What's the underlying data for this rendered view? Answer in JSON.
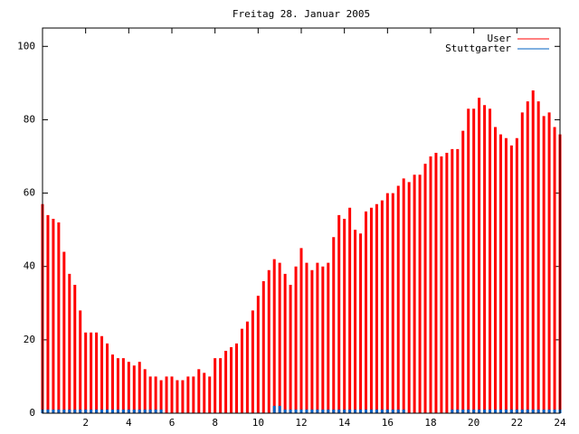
{
  "chart_data": {
    "type": "impulse",
    "title": "Freitag 28. Januar 2005",
    "x": [
      0,
      0.25,
      0.5,
      0.75,
      1,
      1.25,
      1.5,
      1.75,
      2,
      2.25,
      2.5,
      2.75,
      3,
      3.25,
      3.5,
      3.75,
      4,
      4.25,
      4.5,
      4.75,
      5,
      5.25,
      5.5,
      5.75,
      6,
      6.25,
      6.5,
      6.75,
      7,
      7.25,
      7.5,
      7.75,
      8,
      8.25,
      8.5,
      8.75,
      9,
      9.25,
      9.5,
      9.75,
      10,
      10.25,
      10.5,
      10.75,
      11,
      11.25,
      11.5,
      11.75,
      12,
      12.25,
      12.5,
      12.75,
      13,
      13.25,
      13.5,
      13.75,
      14,
      14.25,
      14.5,
      14.75,
      15,
      15.25,
      15.5,
      15.75,
      16,
      16.25,
      16.5,
      16.75,
      17,
      17.25,
      17.5,
      17.75,
      18,
      18.25,
      18.5,
      18.75,
      19,
      19.25,
      19.5,
      19.75,
      20,
      20.25,
      20.5,
      20.75,
      21,
      21.25,
      21.5,
      21.75,
      22,
      22.25,
      22.5,
      22.75,
      23,
      23.25,
      23.5,
      23.75,
      24
    ],
    "series": [
      {
        "name": "User",
        "color": "#ff0000",
        "values": [
          57,
          54,
          53,
          52,
          44,
          38,
          35,
          28,
          22,
          22,
          22,
          21,
          19,
          16,
          15,
          15,
          14,
          13,
          14,
          12,
          10,
          10,
          9,
          10,
          10,
          9,
          9,
          10,
          10,
          12,
          11,
          10,
          15,
          15,
          17,
          18,
          19,
          23,
          25,
          28,
          32,
          36,
          39,
          42,
          41,
          38,
          35,
          40,
          45,
          41,
          39,
          41,
          40,
          41,
          48,
          54,
          53,
          56,
          50,
          49,
          55,
          56,
          57,
          58,
          60,
          60,
          62,
          64,
          63,
          65,
          65,
          68,
          70,
          71,
          70,
          71,
          72,
          72,
          77,
          83,
          83,
          86,
          84,
          83,
          78,
          76,
          75,
          73,
          75,
          82,
          85,
          88,
          85,
          81,
          82,
          78,
          76
        ]
      },
      {
        "name": "Stuttgarter",
        "color": "#0060c0",
        "values": [
          1,
          1,
          1,
          1,
          1,
          1,
          1,
          1,
          1,
          1,
          1,
          1,
          1,
          1,
          1,
          1,
          1,
          1,
          1,
          1,
          1,
          1,
          1,
          0,
          0,
          0,
          0,
          0,
          0,
          0,
          0,
          0,
          0,
          0,
          0,
          0,
          0,
          0,
          0,
          0,
          0,
          0,
          0,
          2,
          2,
          1,
          1,
          1,
          1,
          1,
          1,
          1,
          1,
          1,
          1,
          1,
          1,
          1,
          1,
          1,
          1,
          1,
          1,
          1,
          1,
          1,
          1,
          1,
          0,
          0,
          0,
          0,
          0,
          0,
          0,
          0,
          1,
          1,
          1,
          1,
          1,
          1,
          1,
          1,
          1,
          1,
          1,
          1,
          1,
          1,
          1,
          1,
          1,
          1,
          1,
          1,
          1
        ]
      }
    ],
    "xlim": [
      0,
      24
    ],
    "xticks": [
      2,
      4,
      6,
      8,
      10,
      12,
      14,
      16,
      18,
      20,
      22,
      24
    ],
    "ylim": [
      0,
      105
    ],
    "yticks": [
      0,
      20,
      40,
      60,
      80,
      100
    ],
    "legend": "upper right"
  }
}
